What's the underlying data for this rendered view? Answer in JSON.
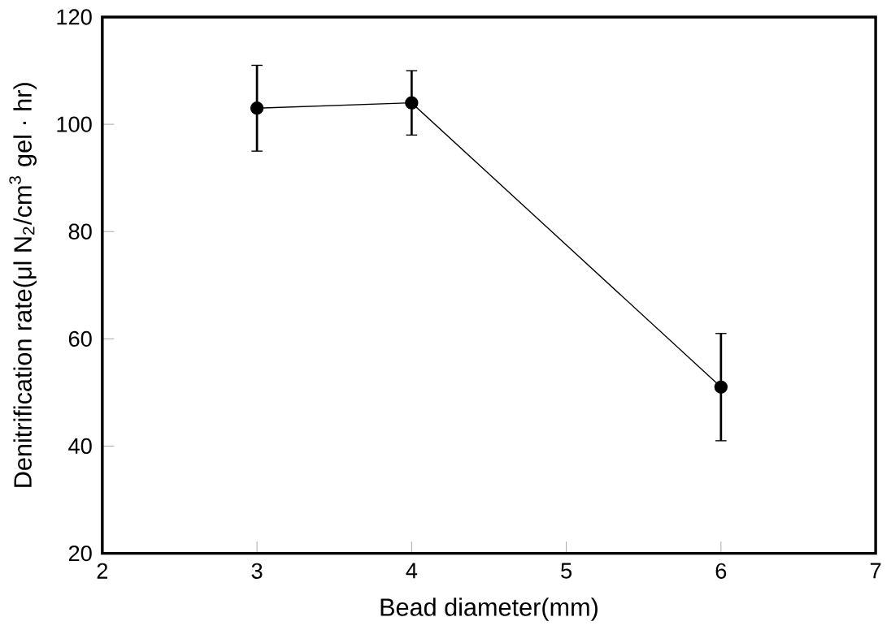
{
  "chart_data": {
    "type": "line",
    "xlabel": "Bead diameter(mm)",
    "ylabel": "Denitrification rate(μl N$_{2}$/cm$^{3}$ gel · hr)",
    "x": [
      3,
      4,
      6
    ],
    "values": [
      103,
      104,
      51
    ],
    "errors": [
      [
        95,
        111
      ],
      [
        98,
        110
      ],
      [
        41,
        61
      ]
    ],
    "color": "#000000",
    "marker": "circle",
    "line_style": "solid",
    "xlim": [
      2,
      7
    ],
    "xticks": [
      2,
      3,
      4,
      5,
      6,
      7
    ],
    "ylim": [
      20,
      120
    ],
    "yticks": [
      20,
      40,
      60,
      80,
      100,
      120
    ]
  }
}
